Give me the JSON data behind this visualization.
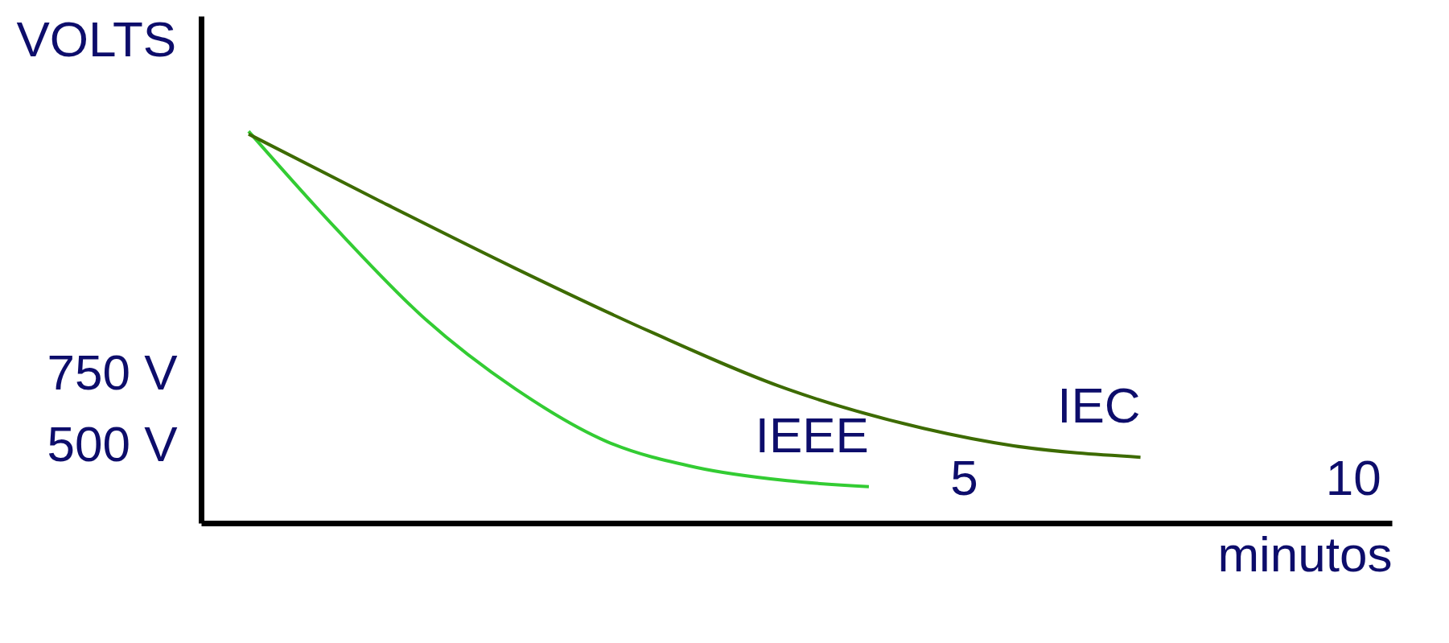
{
  "chart_data": {
    "type": "line",
    "xlabel": "minutos",
    "ylabel": "VOLTS",
    "xlim": [
      -4.8,
      10.5
    ],
    "ylim": [
      230,
      2000
    ],
    "xticks": [
      5,
      10
    ],
    "yticks": [
      {
        "value": 500,
        "label": "500 V"
      },
      {
        "value": 750,
        "label": "750 V"
      }
    ],
    "grid": false,
    "marker": "none",
    "line_style": "solid",
    "series": [
      {
        "name": "IEEE",
        "color": "#33cc33",
        "x": [
          -4.19,
          -3.08,
          -1.92,
          -0.76,
          0.41,
          1.57,
          2.73,
          3.78
        ],
        "values": [
          1598,
          1262,
          942,
          698,
          515,
          424,
          378,
          357
        ]
      },
      {
        "name": "IEC",
        "color": "#3d6b00",
        "x": [
          -4.19,
          -2.5,
          -0.76,
          0.99,
          2.73,
          4.48,
          5.64,
          7.27
        ],
        "values": [
          1588,
          1354,
          1119,
          896,
          698,
          561,
          500,
          460
        ]
      }
    ]
  }
}
